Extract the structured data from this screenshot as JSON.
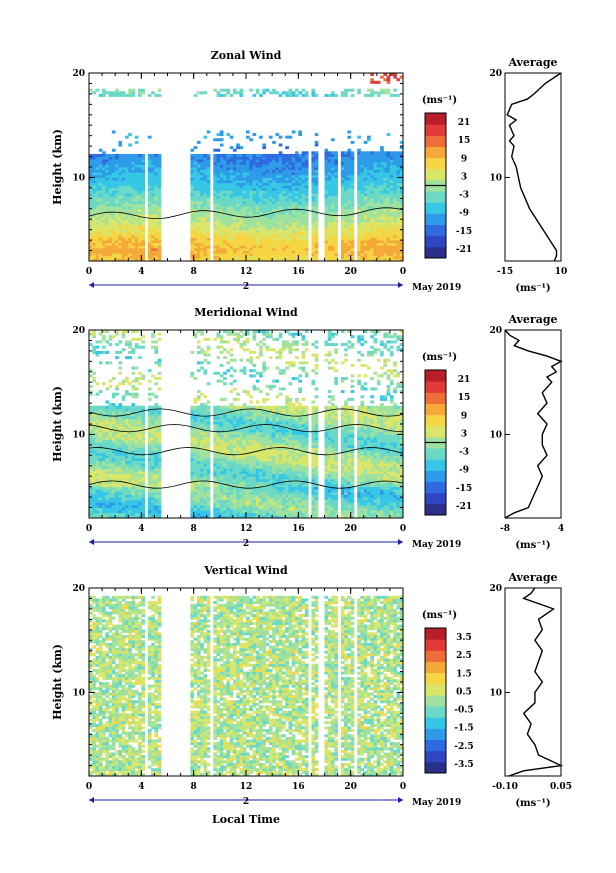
{
  "xlabel": "Local Time",
  "date_label": "May 2019",
  "day_number": "2",
  "colors": {
    "scale": [
      "#2a2f88",
      "#2f46c3",
      "#2e6be0",
      "#2e9be8",
      "#36c6e6",
      "#6bd9c5",
      "#9fe29f",
      "#d9e66a",
      "#f6d542",
      "#f4a93a",
      "#ee6e3a",
      "#e23a36",
      "#b81f2a"
    ],
    "missing": "#ffffff"
  },
  "chart_data": [
    {
      "type": "heatmap",
      "title": "Zonal Wind",
      "xlabel": "Local Time",
      "ylabel": "Height (km)",
      "x_ticks": [
        "0",
        "4",
        "8",
        "12",
        "16",
        "20",
        "0"
      ],
      "y_ticks": [
        "10",
        "20"
      ],
      "xlim": [
        0,
        24
      ],
      "ylim": [
        2,
        20
      ],
      "colorbar": {
        "unit": "(ms⁻¹)",
        "ticks": [
          "21",
          "15",
          "9",
          "3",
          "-3",
          "-9",
          "-15",
          "-21"
        ],
        "range": [
          -24,
          24
        ]
      },
      "zero_contour": true,
      "gaps_hours": [
        [
          4.2,
          4.5
        ],
        [
          5.6,
          7.8
        ],
        [
          9.2,
          9.5
        ],
        [
          16.8,
          17.1
        ],
        [
          17.6,
          17.9
        ],
        [
          19.0,
          19.3
        ],
        [
          20.3,
          20.6
        ]
      ],
      "missing_above_km": {
        "below_16": 12.0,
        "after_16": 12.5
      },
      "description_profile": {
        "heights_km": [
          2,
          3,
          4,
          5,
          6,
          7,
          8,
          9,
          10,
          11,
          12,
          13,
          14,
          15,
          16,
          17,
          18,
          19,
          20
        ],
        "values": [
          7,
          10,
          8,
          4,
          1,
          -1,
          -4,
          -7,
          -9,
          -11,
          -13,
          -12,
          -10,
          -11,
          -12,
          -7,
          -4,
          -1,
          3
        ]
      },
      "average_panel": {
        "title": "Average",
        "xlabel": "(ms⁻¹)",
        "x_ticks": [
          "-15",
          "10"
        ],
        "xlim": [
          -15,
          10
        ],
        "y_ticks": [
          "10",
          "20"
        ],
        "profile_heights_km": [
          2,
          2.5,
          3,
          4,
          5,
          6,
          7,
          8,
          9,
          10,
          11,
          12,
          13,
          13.5,
          14,
          14.5,
          15,
          15.5,
          16,
          17,
          17.5,
          18,
          19,
          20
        ],
        "profile_values": [
          7,
          8,
          8,
          5,
          2,
          -1,
          -4,
          -6,
          -8,
          -9,
          -10,
          -12,
          -11,
          -13,
          -11,
          -12,
          -13,
          -10,
          -14,
          -12,
          -5,
          -2,
          3,
          10
        ]
      }
    },
    {
      "type": "heatmap",
      "title": "Meridional Wind",
      "xlabel": "Local Time",
      "ylabel": "Height (km)",
      "x_ticks": [
        "0",
        "4",
        "8",
        "12",
        "16",
        "20",
        "0"
      ],
      "y_ticks": [
        "10",
        "20"
      ],
      "xlim": [
        0,
        24
      ],
      "ylim": [
        2,
        20
      ],
      "colorbar": {
        "unit": "(ms⁻¹)",
        "ticks": [
          "21",
          "15",
          "9",
          "3",
          "-3",
          "-9",
          "-15",
          "-21"
        ],
        "range": [
          -24,
          24
        ]
      },
      "zero_contour": true,
      "gaps_hours": [
        [
          4.2,
          4.5
        ],
        [
          5.6,
          7.8
        ],
        [
          9.2,
          9.5
        ],
        [
          16.8,
          17.1
        ],
        [
          17.6,
          17.9
        ],
        [
          19.0,
          19.3
        ],
        [
          20.3,
          20.6
        ]
      ],
      "average_panel": {
        "title": "Average",
        "xlabel": "(ms⁻¹)",
        "x_ticks": [
          "-8",
          "4"
        ],
        "xlim": [
          -8,
          4
        ],
        "y_ticks": [
          "10",
          "20"
        ],
        "profile_heights_km": [
          2,
          2.5,
          3,
          4,
          5,
          6,
          7,
          8,
          9,
          10,
          11,
          12,
          13,
          14,
          15,
          15.5,
          16,
          16.5,
          17,
          17.5,
          18,
          18.5,
          19,
          19.5,
          20
        ],
        "profile_values": [
          -8,
          -6,
          -3,
          -2,
          -1,
          0,
          -1,
          1,
          0,
          0,
          1,
          -1,
          1,
          0,
          2,
          1,
          3,
          2,
          4,
          1,
          -3,
          -6,
          -5,
          -7,
          -8
        ]
      }
    },
    {
      "type": "heatmap",
      "title": "Vertical Wind",
      "xlabel": "Local Time",
      "ylabel": "Height (km)",
      "x_ticks": [
        "0",
        "4",
        "8",
        "12",
        "16",
        "20",
        "0"
      ],
      "y_ticks": [
        "10",
        "20"
      ],
      "xlim": [
        0,
        24
      ],
      "ylim": [
        2,
        20
      ],
      "colorbar": {
        "unit": "(ms⁻¹)",
        "ticks": [
          "3.5",
          "2.5",
          "1.5",
          "0.5",
          "-0.5",
          "-1.5",
          "-2.5",
          "-3.5"
        ],
        "range": [
          -4,
          4
        ]
      },
      "zero_contour": false,
      "gaps_hours": [
        [
          4.2,
          4.5
        ],
        [
          5.6,
          7.8
        ],
        [
          9.2,
          9.5
        ],
        [
          16.8,
          17.1
        ],
        [
          17.6,
          17.9
        ],
        [
          19.0,
          19.3
        ],
        [
          20.3,
          20.6
        ]
      ],
      "average_panel": {
        "title": "Average",
        "xlabel": "(ms⁻¹)",
        "x_ticks": [
          "-0.10",
          "0.05"
        ],
        "xlim": [
          -0.1,
          0.05
        ],
        "y_ticks": [
          "10",
          "20"
        ],
        "profile_heights_km": [
          2,
          2.5,
          3,
          3.5,
          4,
          5,
          6,
          7,
          8,
          9,
          10,
          11,
          12,
          13,
          14,
          15,
          16,
          17,
          18,
          19,
          19.5,
          20
        ],
        "profile_values": [
          -0.09,
          -0.05,
          0.05,
          0.02,
          -0.01,
          -0.02,
          -0.04,
          -0.03,
          -0.05,
          -0.02,
          -0.02,
          0.0,
          -0.02,
          -0.01,
          0.0,
          -0.02,
          0.0,
          -0.01,
          0.03,
          -0.05,
          -0.03,
          -0.02
        ]
      }
    }
  ]
}
